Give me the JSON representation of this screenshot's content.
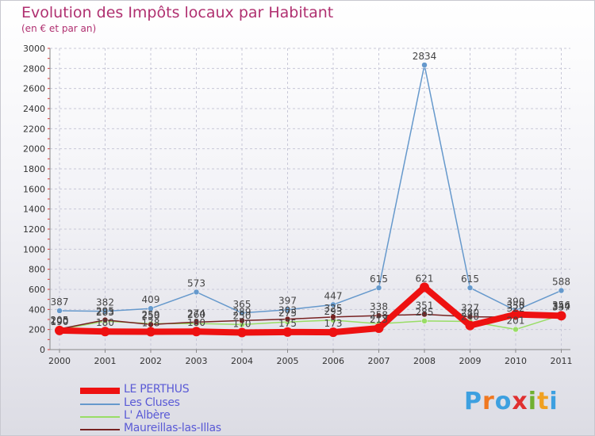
{
  "title": "Evolution des Impôts locaux par Habitant",
  "subtitle": "(en € et par an)",
  "colors": {
    "title": "#b03070",
    "grid": "#c8c8d8",
    "axis": "#888888",
    "legend_text": "#5a5ad6"
  },
  "logo": {
    "text": "Proxiti",
    "letters": [
      "P",
      "r",
      "o",
      "x",
      "i",
      "t",
      "i"
    ],
    "letter_colors": [
      "#3da0e0",
      "#f07820",
      "#3da0e0",
      "#e03030",
      "#70b030",
      "#f0a020",
      "#3da0e0"
    ]
  },
  "chart_data": {
    "type": "line",
    "title": "Evolution des Impôts locaux par Habitant",
    "subtitle": "(en € et par an)",
    "xlabel": "",
    "ylabel": "",
    "x": [
      "2000",
      "2001",
      "2002",
      "2003",
      "2004",
      "2005",
      "2006",
      "2007",
      "2008",
      "2009",
      "2010",
      "2011"
    ],
    "ylim": [
      0,
      3000
    ],
    "yticks": [
      0,
      200,
      400,
      600,
      800,
      1000,
      1200,
      1400,
      1600,
      1800,
      2000,
      2200,
      2400,
      2600,
      2800,
      3000
    ],
    "grid": true,
    "legend_position": "bottom-left",
    "series": [
      {
        "name": "LE PERTHUS",
        "color": "#ee1111",
        "values": [
          190,
          180,
          178,
          180,
          170,
          175,
          173,
          213,
          621,
          240,
          350,
          337
        ]
      },
      {
        "name": "Les Cluses",
        "color": "#6699cc",
        "values": [
          387,
          382,
          409,
          573,
          365,
          397,
          447,
          615,
          2834,
          615,
          390,
          588
        ]
      },
      {
        "name": "L' Albère",
        "color": "#99dd66",
        "values": [
          200,
          283,
          259,
          260,
          250,
          275,
          293,
          258,
          285,
          280,
          201,
          344
        ]
      },
      {
        "name": "Maureillas-las-Illas",
        "color": "#772222",
        "values": [
          205,
          295,
          250,
          274,
          289,
          303,
          325,
          338,
          351,
          327,
          322,
          356
        ]
      }
    ]
  }
}
